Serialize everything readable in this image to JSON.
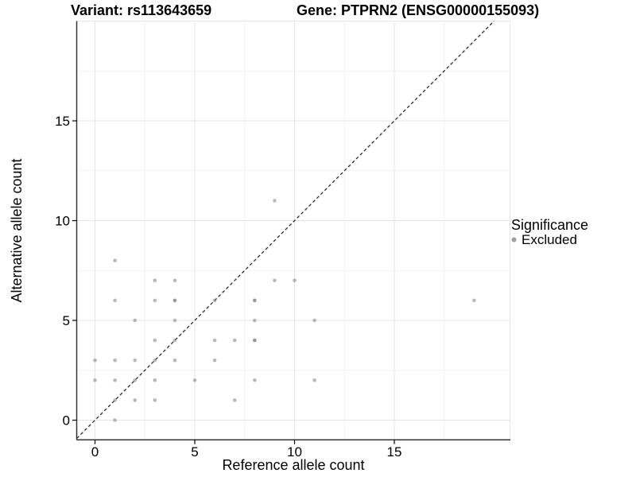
{
  "titles": {
    "variant": "Variant: rs113643659",
    "gene": "Gene: PTPRN2 (ENSG00000155093)"
  },
  "legend": {
    "title": "Significance",
    "items": [
      {
        "label": "Excluded",
        "symbol": "dot",
        "color": "#b9b9b9"
      }
    ]
  },
  "colors": {
    "point": "#808080",
    "point_opacity": 0.55,
    "identity_line": "#1a1a1a",
    "grid_major": "#e6e6e6",
    "grid_minor": "#f2f2f2",
    "axis_line": "#333333",
    "background": "#ffffff"
  },
  "chart_data": {
    "type": "scatter",
    "title": "Variant: rs113643659   |   Gene: PTPRN2 (ENSG00000155093)",
    "xlabel": "Reference allele count",
    "ylabel": "Alternative allele count",
    "xlim": [
      -0.95,
      20.8
    ],
    "ylim": [
      -1.0,
      20.0
    ],
    "x_ticks": [
      0,
      5,
      10,
      15
    ],
    "y_ticks": [
      0,
      5,
      10,
      15
    ],
    "x_minor": [
      2.5,
      7.5,
      12.5,
      17.5
    ],
    "y_minor": [
      2.5,
      7.5,
      12.5,
      17.5
    ],
    "grid": true,
    "legend_position": "right",
    "identity_line": {
      "show": true,
      "style": "dashed",
      "slope": 1,
      "intercept": 0
    },
    "series": [
      {
        "name": "Excluded",
        "points": [
          [
            0,
            2
          ],
          [
            0,
            3
          ],
          [
            1,
            0
          ],
          [
            1,
            1
          ],
          [
            1,
            2
          ],
          [
            1,
            3
          ],
          [
            1,
            6
          ],
          [
            1,
            8
          ],
          [
            2,
            1
          ],
          [
            2,
            2
          ],
          [
            2,
            3
          ],
          [
            2,
            5
          ],
          [
            3,
            1
          ],
          [
            3,
            2
          ],
          [
            3,
            3
          ],
          [
            3,
            4
          ],
          [
            3,
            6
          ],
          [
            3,
            7
          ],
          [
            4,
            3
          ],
          [
            4,
            4
          ],
          [
            4,
            5
          ],
          [
            4,
            6
          ],
          [
            4,
            7
          ],
          [
            5,
            2
          ],
          [
            6,
            3
          ],
          [
            6,
            4
          ],
          [
            6,
            6
          ],
          [
            7,
            1
          ],
          [
            7,
            4
          ],
          [
            8,
            2
          ],
          [
            8,
            4
          ],
          [
            8,
            5
          ],
          [
            8,
            6
          ],
          [
            9,
            7
          ],
          [
            9,
            11
          ],
          [
            10,
            7
          ],
          [
            11,
            2
          ],
          [
            11,
            5
          ],
          [
            19,
            6
          ]
        ],
        "overlapping_points": [
          [
            4,
            6
          ],
          [
            8,
            6
          ],
          [
            8,
            4
          ]
        ]
      }
    ]
  }
}
